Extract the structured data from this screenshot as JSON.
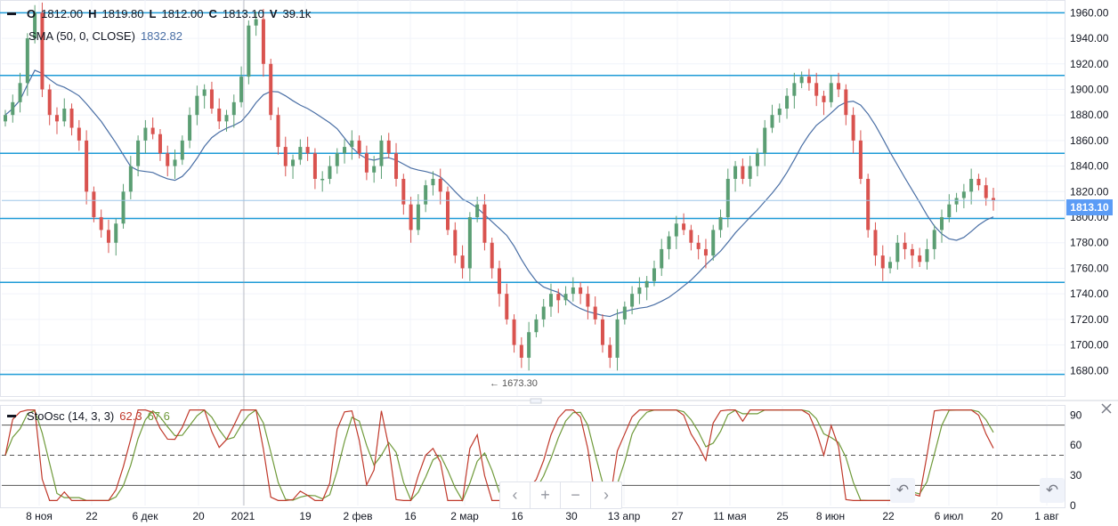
{
  "ohlc": {
    "collapse_icon": "minus-icon",
    "o_label": "O",
    "o_value": "1812.00",
    "h_label": "H",
    "h_value": "1819.80",
    "l_label": "L",
    "l_value": "1812.00",
    "c_label": "C",
    "c_value": "1813.10",
    "v_label": "V",
    "v_value": "39.1k"
  },
  "sma": {
    "label": "SMA (50, 0, CLOSE)",
    "value": "1832.82",
    "color": "#4a6fa5"
  },
  "stoch": {
    "collapse_icon": "minus-icon",
    "label": "StoOsc (14, 3, 3)",
    "k_value": "62.3",
    "d_value": "67.6",
    "k_color": "#c0392b",
    "d_color": "#6f9a3a",
    "close_icon": "close-icon",
    "levels": [
      80,
      50,
      20
    ],
    "ticks": [
      "90",
      "60",
      "30",
      "0"
    ]
  },
  "price_axis": {
    "ticks": [
      "1960.00",
      "1940.00",
      "1920.00",
      "1900.00",
      "1880.00",
      "1860.00",
      "1840.00",
      "1820.00",
      "1800.00",
      "1780.00",
      "1760.00",
      "1740.00",
      "1720.00",
      "1700.00",
      "1680.00"
    ],
    "last_price": "1813.10",
    "last_price_color": "#5b9cf6"
  },
  "time_axis": {
    "ticks": [
      "8 ноя",
      "22",
      "6 дек",
      "20",
      "2021",
      "19",
      "2 фев",
      "16",
      "2 мар",
      "16",
      "30",
      "13 апр",
      "27",
      "11 мая",
      "25",
      "8 июн",
      "22",
      "6 июл",
      "20",
      "1 авг"
    ]
  },
  "horizontal_levels": [
    1960,
    1911,
    1850,
    1799,
    1749,
    1677
  ],
  "low_annotation": "← 1673.30",
  "colors": {
    "up": "#26a69a",
    "down": "#ef5350",
    "level_line": "#1e9bd7",
    "up_candle": "#5b9e73",
    "down_candle": "#d9534f"
  },
  "nav": {
    "left_icon": "chevron-left-icon",
    "zoom_in_icon": "plus-icon",
    "zoom_out_icon": "minus-icon",
    "right_icon": "chevron-right-icon",
    "reset_icon": "undo-icon"
  },
  "chart_data": {
    "type": "candlestick",
    "price_axis_range": [
      1660,
      1970
    ],
    "closes_estimated": [
      1880,
      1890,
      1905,
      1940,
      1960,
      1900,
      1880,
      1875,
      1885,
      1870,
      1860,
      1820,
      1800,
      1790,
      1780,
      1795,
      1820,
      1840,
      1860,
      1870,
      1865,
      1850,
      1840,
      1845,
      1860,
      1880,
      1895,
      1900,
      1885,
      1875,
      1880,
      1890,
      1910,
      1950,
      1955,
      1920,
      1880,
      1855,
      1840,
      1845,
      1855,
      1850,
      1830,
      1830,
      1840,
      1850,
      1855,
      1860,
      1850,
      1835,
      1840,
      1860,
      1850,
      1830,
      1810,
      1790,
      1810,
      1825,
      1830,
      1820,
      1790,
      1770,
      1760,
      1800,
      1810,
      1780,
      1760,
      1740,
      1720,
      1700,
      1690,
      1710,
      1720,
      1730,
      1740,
      1735,
      1740,
      1745,
      1740,
      1730,
      1720,
      1700,
      1690,
      1720,
      1730,
      1740,
      1745,
      1750,
      1760,
      1775,
      1785,
      1795,
      1790,
      1780,
      1775,
      1770,
      1790,
      1800,
      1830,
      1840,
      1830,
      1840,
      1850,
      1870,
      1880,
      1885,
      1895,
      1905,
      1910,
      1905,
      1895,
      1890,
      1905,
      1900,
      1880,
      1860,
      1830,
      1790,
      1770,
      1760,
      1765,
      1780,
      1775,
      1770,
      1765,
      1775,
      1790,
      1800,
      1810,
      1815,
      1820,
      1830,
      1825,
      1815,
      1813.1
    ],
    "sma_50_last": 1832.82,
    "stochastic": {
      "k_last": 62.3,
      "d_last": 67.6,
      "range": [
        0,
        100
      ]
    }
  }
}
